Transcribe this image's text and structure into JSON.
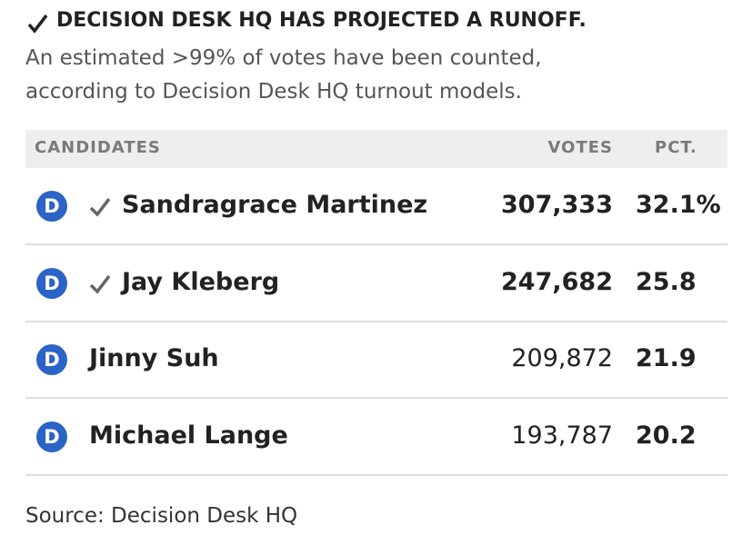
{
  "header": {
    "title": "DECISION DESK HQ HAS PROJECTED A RUNOFF.",
    "subtitle_lines": [
      "An estimated >99% of votes have been counted,",
      "according to Decision Desk HQ turnout models."
    ]
  },
  "table": {
    "columns": [
      "CANDIDATES",
      "VOTES",
      "PCT."
    ],
    "rows": [
      {
        "party": "D",
        "name": "Sandragrace Martinez",
        "votes": "307,333",
        "pct": "32.1%",
        "winner": true
      },
      {
        "party": "D",
        "name": "Jay Kleberg",
        "votes": "247,682",
        "pct": "25.8",
        "winner": true
      },
      {
        "party": "D",
        "name": "Jinny Suh",
        "votes": "209,872",
        "pct": "21.9",
        "winner": false
      },
      {
        "party": "D",
        "name": "Michael Lange",
        "votes": "193,787",
        "pct": "20.2",
        "winner": false
      }
    ]
  },
  "source": "Source: Decision Desk HQ"
}
